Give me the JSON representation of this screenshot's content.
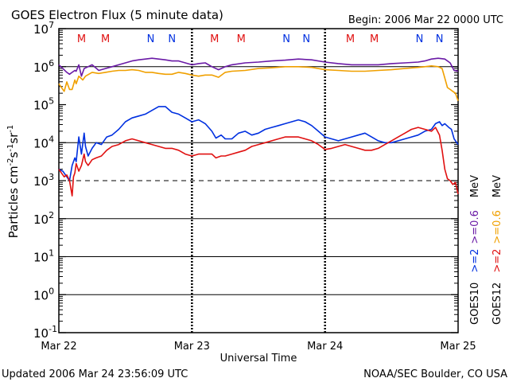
{
  "header": {
    "title": "GOES Electron Flux (5 minute data)",
    "begin": "Begin: 2006 Mar 22 0000 UTC"
  },
  "footer": {
    "updated": "Updated 2006 Mar 24 23:56:09 UTC",
    "credit": "NOAA/SEC Boulder, CO USA"
  },
  "colors": {
    "goes10_ge2": "#0030e0",
    "goes10_ge06": "#6a1aa6",
    "goes12_ge2": "#e01010",
    "goes12_ge06": "#f0a000",
    "marker_m": "#e01010",
    "marker_n": "#0030e0"
  },
  "chart_data": {
    "type": "line",
    "title": "GOES Electron Flux (5 minute data)",
    "xlabel": "Universal Time",
    "ylabel_parts": [
      "Particles cm",
      "-2",
      "s",
      "-1",
      "sr",
      "-1"
    ],
    "xlim": [
      0,
      3
    ],
    "ylim_log10": [
      -1,
      7
    ],
    "x_ticks": [
      {
        "value": 0,
        "label": "Mar 22"
      },
      {
        "value": 1,
        "label": "Mar 23"
      },
      {
        "value": 2,
        "label": "Mar 24"
      },
      {
        "value": 3,
        "label": "Mar 25"
      }
    ],
    "y_ticks": [
      {
        "exp": 7,
        "base": "10",
        "sup": "7"
      },
      {
        "exp": 6,
        "base": "10",
        "sup": "6"
      },
      {
        "exp": 5,
        "base": "10",
        "sup": "5"
      },
      {
        "exp": 4,
        "base": "10",
        "sup": "4"
      },
      {
        "exp": 3,
        "base": "10",
        "sup": "3"
      },
      {
        "exp": 2,
        "base": "10",
        "sup": "2"
      },
      {
        "exp": 1,
        "base": "10",
        "sup": "1"
      },
      {
        "exp": 0,
        "base": "10",
        "sup": "0"
      },
      {
        "exp": -1,
        "base": "10",
        "sup": "-1"
      }
    ],
    "reference_lines": [
      {
        "exp": 6,
        "style": "solid"
      },
      {
        "exp": 4,
        "style": "solid"
      },
      {
        "exp": 3,
        "style": "dashed"
      },
      {
        "exp": 2,
        "style": "solid"
      },
      {
        "exp": 1,
        "style": "solid"
      },
      {
        "exp": 0,
        "style": "solid"
      }
    ],
    "markers": [
      {
        "label": "M",
        "x": 0.17
      },
      {
        "label": "M",
        "x": 0.35
      },
      {
        "label": "N",
        "x": 0.69
      },
      {
        "label": "N",
        "x": 0.85
      },
      {
        "label": "M",
        "x": 1.17
      },
      {
        "label": "M",
        "x": 1.37
      },
      {
        "label": "N",
        "x": 1.71
      },
      {
        "label": "N",
        "x": 1.86
      },
      {
        "label": "M",
        "x": 2.19
      },
      {
        "label": "M",
        "x": 2.37
      },
      {
        "label": "N",
        "x": 2.71
      },
      {
        "label": "N",
        "x": 2.86
      }
    ],
    "legend": {
      "goes10_label": "GOES10",
      "goes12_label": "GOES12",
      "ge2_label": ">=2",
      "ge06_label": ">=0.6",
      "unit": "MeV"
    },
    "series": [
      {
        "name": "GOES10 >=2 MeV",
        "color_key": "goes10_ge2",
        "x": [
          0,
          0.03,
          0.06,
          0.08,
          0.1,
          0.12,
          0.13,
          0.15,
          0.17,
          0.19,
          0.2,
          0.22,
          0.25,
          0.28,
          0.32,
          0.36,
          0.4,
          0.45,
          0.5,
          0.55,
          0.6,
          0.65,
          0.7,
          0.75,
          0.8,
          0.85,
          0.9,
          0.95,
          1.0,
          1.05,
          1.1,
          1.15,
          1.18,
          1.22,
          1.25,
          1.3,
          1.35,
          1.4,
          1.45,
          1.5,
          1.55,
          1.6,
          1.65,
          1.7,
          1.75,
          1.8,
          1.85,
          1.9,
          1.95,
          2.0,
          2.05,
          2.1,
          2.15,
          2.2,
          2.25,
          2.3,
          2.35,
          2.4,
          2.45,
          2.5,
          2.55,
          2.6,
          2.65,
          2.7,
          2.75,
          2.8,
          2.83,
          2.86,
          2.88,
          2.9,
          2.93,
          2.95,
          2.97,
          3.0
        ],
        "y": [
          3.3,
          3.25,
          3.1,
          3.0,
          3.4,
          3.6,
          3.5,
          4.15,
          3.7,
          4.25,
          3.9,
          3.65,
          3.85,
          4.0,
          3.95,
          4.15,
          4.2,
          4.35,
          4.55,
          4.65,
          4.7,
          4.75,
          4.85,
          4.95,
          4.95,
          4.8,
          4.75,
          4.65,
          4.55,
          4.6,
          4.5,
          4.3,
          4.12,
          4.2,
          4.1,
          4.1,
          4.25,
          4.3,
          4.2,
          4.25,
          4.35,
          4.4,
          4.45,
          4.5,
          4.55,
          4.6,
          4.55,
          4.45,
          4.3,
          4.15,
          4.1,
          4.05,
          4.1,
          4.15,
          4.2,
          4.25,
          4.15,
          4.05,
          4.0,
          4.0,
          4.05,
          4.1,
          4.15,
          4.2,
          4.3,
          4.35,
          4.5,
          4.55,
          4.45,
          4.5,
          4.4,
          4.35,
          4.1,
          3.95
        ]
      },
      {
        "name": "GOES12 >=2 MeV",
        "color_key": "goes12_ge2",
        "x": [
          0,
          0.02,
          0.04,
          0.06,
          0.08,
          0.1,
          0.11,
          0.12,
          0.13,
          0.15,
          0.17,
          0.19,
          0.2,
          0.22,
          0.25,
          0.28,
          0.32,
          0.36,
          0.4,
          0.45,
          0.5,
          0.55,
          0.6,
          0.65,
          0.7,
          0.75,
          0.8,
          0.85,
          0.9,
          0.95,
          1.0,
          1.05,
          1.1,
          1.15,
          1.18,
          1.22,
          1.25,
          1.3,
          1.35,
          1.4,
          1.45,
          1.5,
          1.55,
          1.6,
          1.65,
          1.7,
          1.75,
          1.8,
          1.85,
          1.9,
          1.95,
          2.0,
          2.05,
          2.1,
          2.15,
          2.2,
          2.25,
          2.3,
          2.35,
          2.4,
          2.45,
          2.5,
          2.55,
          2.6,
          2.65,
          2.7,
          2.75,
          2.8,
          2.83,
          2.86,
          2.88,
          2.9,
          2.92,
          2.94,
          2.96,
          2.98,
          3.0
        ],
        "y": [
          3.3,
          3.2,
          3.1,
          3.15,
          3.0,
          2.6,
          3.1,
          3.2,
          3.45,
          3.25,
          3.4,
          3.7,
          3.5,
          3.4,
          3.55,
          3.6,
          3.65,
          3.8,
          3.9,
          3.95,
          4.05,
          4.1,
          4.05,
          4.0,
          3.95,
          3.9,
          3.85,
          3.85,
          3.8,
          3.7,
          3.65,
          3.7,
          3.7,
          3.7,
          3.6,
          3.65,
          3.65,
          3.7,
          3.75,
          3.8,
          3.9,
          3.95,
          4.0,
          4.05,
          4.1,
          4.15,
          4.15,
          4.15,
          4.1,
          4.05,
          3.95,
          3.82,
          3.85,
          3.9,
          3.95,
          3.9,
          3.85,
          3.8,
          3.8,
          3.85,
          3.95,
          4.05,
          4.15,
          4.25,
          4.35,
          4.4,
          4.35,
          4.3,
          4.4,
          4.2,
          3.8,
          3.3,
          3.05,
          3.0,
          2.9,
          2.95,
          2.65
        ]
      },
      {
        "name": "GOES10 >=0.6 MeV",
        "color_key": "goes10_ge06",
        "x": [
          0,
          0.03,
          0.06,
          0.08,
          0.1,
          0.12,
          0.13,
          0.15,
          0.17,
          0.19,
          0.22,
          0.25,
          0.3,
          0.35,
          0.4,
          0.45,
          0.5,
          0.55,
          0.6,
          0.65,
          0.7,
          0.75,
          0.8,
          0.85,
          0.9,
          0.95,
          1.0,
          1.05,
          1.1,
          1.15,
          1.2,
          1.25,
          1.3,
          1.4,
          1.5,
          1.6,
          1.7,
          1.8,
          1.9,
          2.0,
          2.1,
          2.2,
          2.3,
          2.4,
          2.5,
          2.6,
          2.7,
          2.75,
          2.8,
          2.85,
          2.9,
          2.94,
          2.97,
          3.0
        ],
        "y": [
          6.05,
          5.95,
          5.85,
          5.8,
          5.85,
          5.9,
          5.88,
          6.05,
          5.75,
          5.95,
          6.0,
          6.05,
          5.9,
          5.95,
          6.0,
          6.05,
          6.1,
          6.15,
          6.18,
          6.2,
          6.22,
          6.2,
          6.18,
          6.15,
          6.15,
          6.1,
          6.05,
          6.08,
          6.1,
          6.0,
          5.92,
          6.0,
          6.05,
          6.1,
          6.12,
          6.15,
          6.17,
          6.2,
          6.18,
          6.12,
          6.08,
          6.05,
          6.05,
          6.05,
          6.08,
          6.1,
          6.12,
          6.15,
          6.2,
          6.22,
          6.2,
          6.1,
          5.9,
          5.88
        ]
      },
      {
        "name": "GOES12 >=0.6 MeV",
        "color_key": "goes12_ge06",
        "x": [
          0,
          0.02,
          0.04,
          0.06,
          0.08,
          0.1,
          0.12,
          0.13,
          0.15,
          0.18,
          0.2,
          0.25,
          0.3,
          0.35,
          0.4,
          0.45,
          0.5,
          0.55,
          0.6,
          0.65,
          0.7,
          0.75,
          0.8,
          0.85,
          0.9,
          0.95,
          1.0,
          1.05,
          1.1,
          1.15,
          1.2,
          1.25,
          1.3,
          1.4,
          1.5,
          1.6,
          1.7,
          1.8,
          1.9,
          2.0,
          2.1,
          2.2,
          2.3,
          2.4,
          2.5,
          2.6,
          2.7,
          2.75,
          2.8,
          2.85,
          2.88,
          2.9,
          2.92,
          2.94,
          2.96,
          2.98,
          3.0
        ],
        "y": [
          5.55,
          5.45,
          5.35,
          5.6,
          5.4,
          5.4,
          5.65,
          5.55,
          5.75,
          5.65,
          5.75,
          5.85,
          5.82,
          5.85,
          5.88,
          5.9,
          5.9,
          5.92,
          5.9,
          5.85,
          5.85,
          5.82,
          5.8,
          5.8,
          5.85,
          5.82,
          5.78,
          5.75,
          5.78,
          5.78,
          5.72,
          5.85,
          5.88,
          5.9,
          5.95,
          5.97,
          6.0,
          6.0,
          5.98,
          5.92,
          5.9,
          5.88,
          5.88,
          5.9,
          5.92,
          5.95,
          5.98,
          6.0,
          6.02,
          6.0,
          5.95,
          5.7,
          5.45,
          5.4,
          5.35,
          5.3,
          5.1
        ]
      }
    ]
  }
}
